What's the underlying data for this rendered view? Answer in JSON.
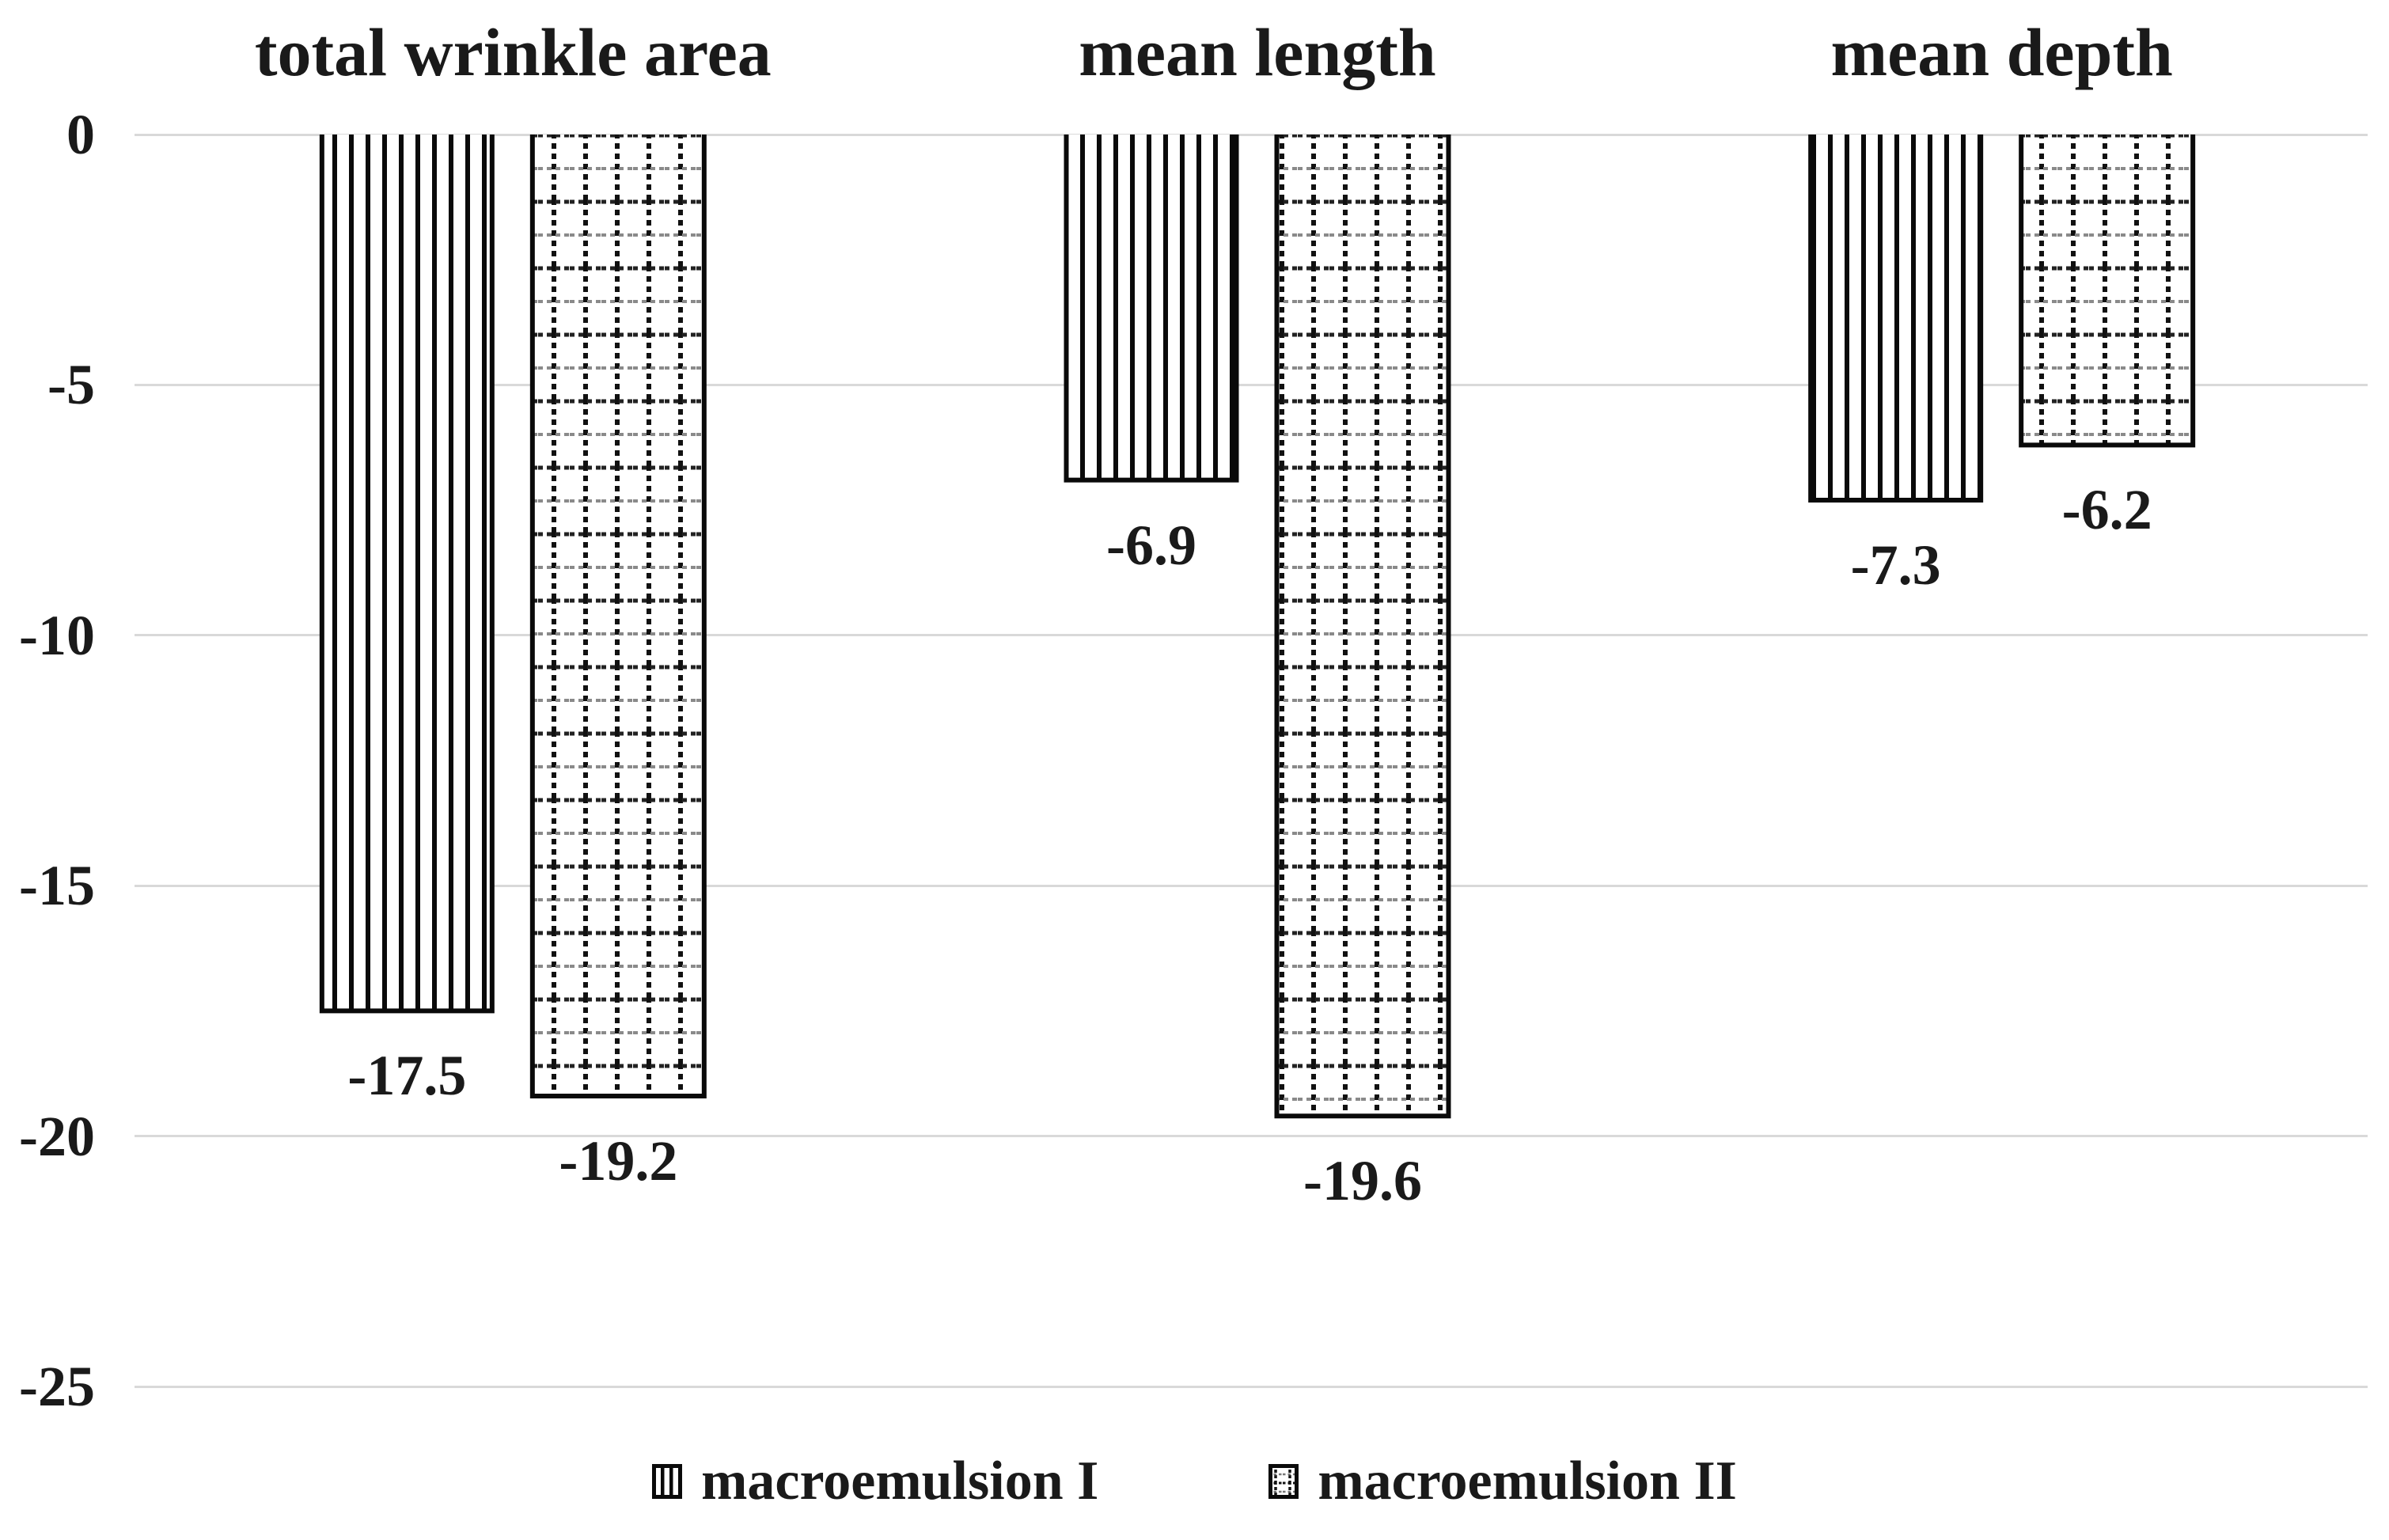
{
  "figure": {
    "background": "#ffffff",
    "text_color": "#1a1a1a",
    "gridline_color": "#d9d9d9",
    "bar_outline_color": "#0a0a0a"
  },
  "chart_data": {
    "type": "bar",
    "orientation": "vertical",
    "categories": [
      "total wrinkle area",
      "mean length",
      "mean depth"
    ],
    "series": [
      {
        "name": "macroemulsion I",
        "pattern": "vertical-stripes",
        "values": [
          -17.5,
          -6.9,
          -7.3
        ]
      },
      {
        "name": "macroemulsion II",
        "pattern": "dotted-grid",
        "values": [
          -19.2,
          -19.6,
          -6.2
        ]
      }
    ],
    "data_labels": [
      [
        "-17.5",
        "-6.9",
        "-7.3"
      ],
      [
        "-19.2",
        "-19.6",
        "-6.2"
      ]
    ],
    "ylim": [
      0,
      -25
    ],
    "y_ticks": [
      "0",
      "-5",
      "-10",
      "-15",
      "-20",
      "-25"
    ],
    "y_tick_values": [
      0,
      -5,
      -10,
      -15,
      -20,
      -25
    ],
    "grid": true,
    "legend_position": "bottom"
  },
  "legend": {
    "items": [
      {
        "label": "macroemulsion I",
        "pattern": "vertical-stripes"
      },
      {
        "label": "macroemulsion II",
        "pattern": "dotted-grid"
      }
    ]
  }
}
